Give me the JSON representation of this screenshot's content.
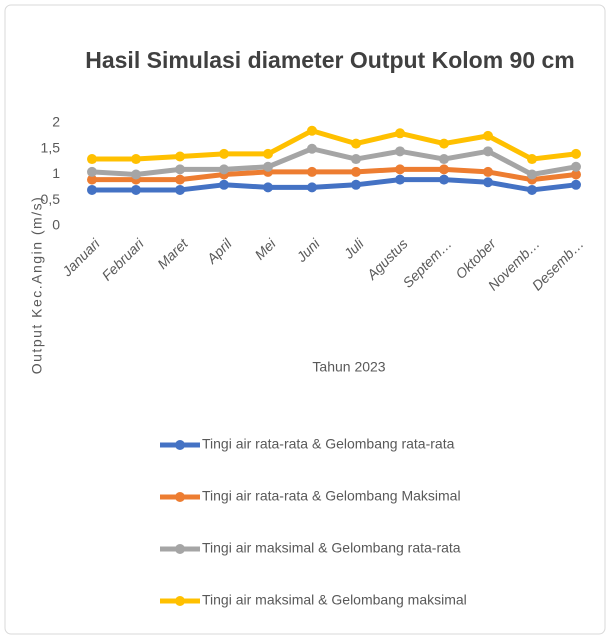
{
  "chart_data": {
    "type": "line",
    "title": "Hasil Simulasi diameter Output Kolom 90 cm",
    "x_label": "Tahun 2023",
    "y_label": "Output Kec.Angin (m/s)",
    "categories": [
      "Januari",
      "Februari",
      "Maret",
      "April",
      "Mei",
      "Juni",
      "Juli",
      "Agustus",
      "Septem…",
      "Oktober",
      "Novemb…",
      "Desemb…"
    ],
    "ylim": [
      0,
      2
    ],
    "yticks": [
      0,
      {
        "value": 0.5,
        "label": "0,5"
      },
      1,
      {
        "value": 1.5,
        "label": "1,5"
      },
      2
    ],
    "series": [
      {
        "name": "Tingi air rata-rata & Gelombang rata-rata",
        "color": "#4472c4",
        "values": [
          0.7,
          0.7,
          0.7,
          0.8,
          0.75,
          0.75,
          0.8,
          0.9,
          0.9,
          0.85,
          0.7,
          0.8
        ]
      },
      {
        "name": "Tingi air rata-rata & Gelombang Maksimal",
        "color": "#ed7d31",
        "values": [
          0.9,
          0.9,
          0.9,
          1.0,
          1.05,
          1.05,
          1.05,
          1.1,
          1.1,
          1.05,
          0.9,
          1.0
        ]
      },
      {
        "name": "Tingi air maksimal & Gelombang rata-rata",
        "color": "#a5a5a5",
        "values": [
          1.05,
          1.0,
          1.1,
          1.1,
          1.15,
          1.5,
          1.3,
          1.45,
          1.3,
          1.45,
          1.0,
          1.15
        ]
      },
      {
        "name": "Tingi air maksimal & Gelombang maksimal",
        "color": "#ffc000",
        "values": [
          1.3,
          1.3,
          1.35,
          1.4,
          1.4,
          1.85,
          1.6,
          1.8,
          1.6,
          1.75,
          1.3,
          1.4
        ]
      }
    ]
  }
}
